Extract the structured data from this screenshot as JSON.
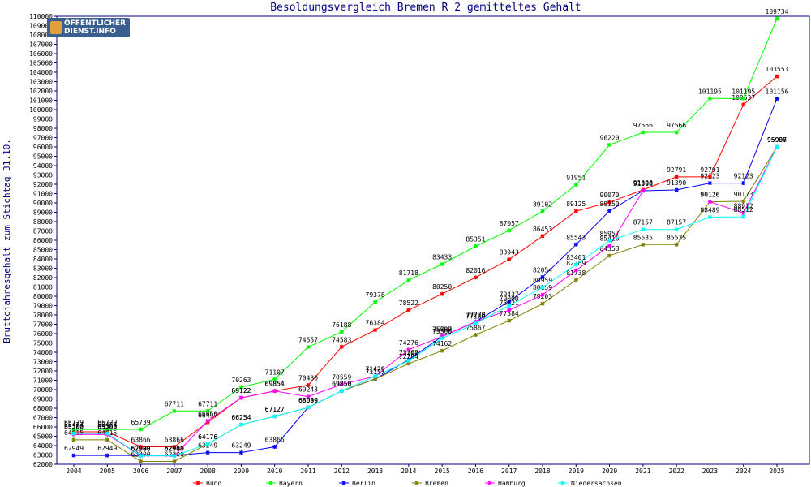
{
  "chart_data": {
    "type": "line",
    "title": "Besoldungsvergleich Bremen R 2 gemitteltes Gehalt",
    "ylabel": "Bruttojahresgehalt zum Stichtag 31.10.",
    "xlabel": "",
    "ylim": [
      62000,
      110000
    ],
    "ytick_step": 1000,
    "grid": false,
    "legend_position": "bottom",
    "categories": [
      "2004",
      "2005",
      "2006",
      "2007",
      "2008",
      "2009",
      "2010",
      "2011",
      "2012",
      "2013",
      "2014",
      "2015",
      "2016",
      "2017",
      "2018",
      "2019",
      "2020",
      "2021",
      "2022",
      "2023",
      "2024",
      "2025"
    ],
    "series": [
      {
        "name": "Bund",
        "color": "#ff0000",
        "values": [
          65474,
          65474,
          63866,
          63866,
          66497,
          69122,
          69854,
          70480,
          74583,
          76384,
          78522,
          80250,
          82016,
          83943,
          86453,
          89125,
          90070,
          91398,
          92791,
          92791,
          100537,
          103553
        ]
      },
      {
        "name": "Bayern",
        "color": "#00ff00",
        "values": [
          65729,
          65729,
          65739,
          67711,
          67711,
          70263,
          71107,
          74557,
          76188,
          79378,
          81718,
          83433,
          85351,
          87057,
          89102,
          91951,
          96220,
          97566,
          97566,
          101195,
          101195,
          109734
        ]
      },
      {
        "name": "Berlin",
        "color": "#0000ff",
        "values": [
          62949,
          62949,
          62949,
          62949,
          63249,
          63249,
          63866,
          68099,
          69850,
          71127,
          73202,
          75700,
          77270,
          79437,
          82054,
          85543,
          89150,
          91308,
          91390,
          92123,
          92123,
          101156
        ]
      },
      {
        "name": "Bremen",
        "color": "#808000",
        "values": [
          64615,
          64615,
          62300,
          62300,
          64176,
          66254,
          67127,
          68080,
          69850,
          71127,
          72784,
          74162,
          75867,
          77384,
          79203,
          81738,
          84353,
          85535,
          85535,
          90126,
          90173,
          95986
        ]
      },
      {
        "name": "Hamburg",
        "color": "#ff00ff",
        "values": [
          65200,
          65200,
          62900,
          62900,
          66650,
          69122,
          69854,
          69243,
          70559,
          71429,
          74276,
          75687,
          77278,
          78521,
          80159,
          82769,
          85416,
          91308,
          null,
          90126,
          88912,
          95997
        ]
      },
      {
        "name": "Niedersachsen",
        "color": "#00ffff",
        "values": [
          65300,
          65300,
          62900,
          62900,
          64176,
          66254,
          67127,
          68099,
          69850,
          71429,
          73100,
          75500,
          77100,
          79000,
          80959,
          83401,
          85957,
          87157,
          87157,
          88489,
          88512,
          95997
        ]
      }
    ],
    "labels": {
      "Bund": [
        "65474",
        "65474",
        "63866",
        "63866",
        "66497",
        "69122",
        "69854",
        "70480",
        "74583",
        "76384",
        "78522",
        "80250",
        "82016",
        "83943",
        "86453",
        "89125",
        "90070",
        "91398",
        "92791",
        "92791",
        "100537",
        "103553"
      ],
      "Bayern": [
        "65729",
        "65729",
        "65739",
        "67711",
        "67711",
        "70263",
        "71107",
        "74557",
        "76188",
        "79378",
        "81718",
        "83433",
        "85351",
        "87057",
        "89102",
        "91951",
        "96220",
        "97566",
        "97566",
        "101195",
        "101195",
        "109734"
      ],
      "Berlin": [
        "62949",
        "62949",
        "62949",
        "62949",
        "63249",
        "63249",
        "63866",
        "68099",
        "69850",
        "71127",
        "73202",
        "75700",
        "77270",
        "79437",
        "82054",
        "85543",
        "89150",
        "91308",
        "91390",
        "92123",
        "92123",
        "101156"
      ],
      "Bremen": [
        "64615",
        "64615",
        "62300",
        "62300",
        "64176",
        "66254",
        "67127",
        "68080",
        "69850",
        "71127",
        "72784",
        "74162",
        "75867",
        "77384",
        "79203",
        "81738",
        "84353",
        "85535",
        "85535",
        "90126",
        "90173",
        "95986"
      ],
      "Hamburg": [
        "65200",
        "65200",
        "62900",
        "62900",
        "66650",
        "69122",
        "69854",
        "69243",
        "70559",
        "71429",
        "74276",
        "75687",
        "77278",
        "78521",
        "80159",
        "82769",
        "85416",
        "91308",
        "",
        "90126",
        "88912",
        "95997"
      ],
      "Niedersachsen": [
        "65300",
        "65300",
        "62900",
        "62900",
        "64176",
        "66254",
        "67127",
        "68099",
        "69850",
        "71429",
        "73100",
        "75500",
        "77100",
        "79000",
        "80959",
        "83401",
        "85957",
        "87157",
        "87157",
        "88489",
        "88512",
        "95997"
      ]
    }
  },
  "logo": {
    "line1": "ÖFFENTLICHER",
    "line2": "DIENST.INFO",
    "icon": "logo-mark-icon"
  },
  "colors": {
    "axis": "#000080",
    "background": "#ffffff"
  }
}
